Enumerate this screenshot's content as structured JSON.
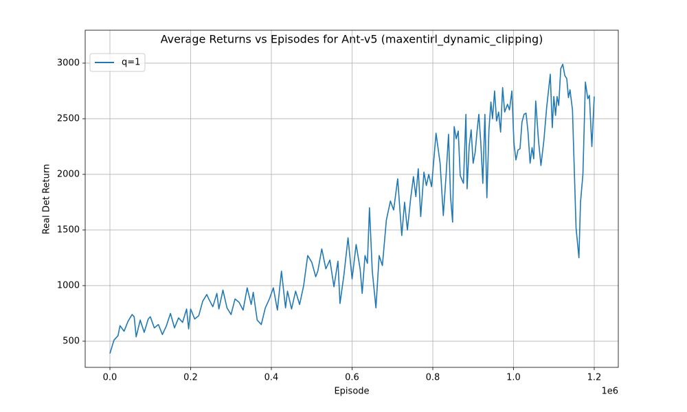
{
  "chart_data": {
    "type": "line",
    "title": "Average Returns vs Episodes for Ant-v5 (maxentirl_dynamic_clipping)",
    "xlabel": "Episode",
    "ylabel": "Real Det Return",
    "x_offset_text": "1e6",
    "x": [
      0,
      10000,
      20000,
      25000,
      35000,
      45000,
      55000,
      60000,
      65000,
      75000,
      85000,
      95000,
      100000,
      110000,
      120000,
      130000,
      140000,
      150000,
      160000,
      170000,
      180000,
      190000,
      195000,
      200000,
      210000,
      220000,
      230000,
      240000,
      245000,
      255000,
      265000,
      270000,
      280000,
      290000,
      300000,
      310000,
      320000,
      330000,
      340000,
      350000,
      355000,
      365000,
      375000,
      385000,
      395000,
      405000,
      415000,
      425000,
      435000,
      440000,
      450000,
      460000,
      470000,
      480000,
      490000,
      500000,
      510000,
      515000,
      525000,
      535000,
      545000,
      555000,
      565000,
      570000,
      580000,
      590000,
      600000,
      610000,
      620000,
      625000,
      632000,
      638000,
      643000,
      650000,
      659000,
      667000,
      675000,
      685000,
      695000,
      703000,
      713000,
      723000,
      730000,
      737000,
      745000,
      752000,
      758000,
      764000,
      770000,
      778000,
      784000,
      790000,
      797000,
      808000,
      818000,
      826000,
      833000,
      839000,
      844000,
      849000,
      853000,
      858000,
      863000,
      868000,
      876000,
      882000,
      885000,
      890000,
      895000,
      900000,
      905000,
      910000,
      914000,
      919000,
      924000,
      929000,
      934000,
      939000,
      944000,
      948000,
      953000,
      958000,
      963000,
      968000,
      973000,
      978000,
      985000,
      990000,
      996000,
      1001000,
      1006000,
      1011000,
      1016000,
      1021000,
      1026000,
      1031000,
      1036000,
      1041000,
      1046000,
      1050000,
      1055000,
      1062000,
      1068000,
      1075000,
      1082000,
      1091000,
      1096000,
      1100000,
      1104000,
      1108000,
      1112000,
      1117000,
      1122000,
      1127000,
      1132000,
      1136000,
      1140000,
      1146000,
      1155000,
      1162000,
      1166000,
      1172000,
      1178000,
      1184000,
      1188000,
      1194000,
      1200000
    ],
    "series": [
      {
        "name": "q=1",
        "color": "#1f77b4",
        "values": [
          390,
          510,
          550,
          640,
          590,
          680,
          740,
          720,
          540,
          690,
          580,
          700,
          720,
          620,
          650,
          560,
          640,
          750,
          620,
          710,
          670,
          790,
          610,
          790,
          700,
          730,
          860,
          920,
          880,
          810,
          930,
          790,
          960,
          800,
          740,
          880,
          850,
          780,
          980,
          830,
          940,
          690,
          650,
          800,
          880,
          980,
          780,
          1130,
          800,
          950,
          790,
          950,
          830,
          1000,
          1270,
          1210,
          1080,
          1130,
          1330,
          1150,
          1230,
          990,
          1220,
          840,
          1100,
          1430,
          1060,
          1370,
          1150,
          930,
          1270,
          1200,
          1700,
          1130,
          800,
          1270,
          1180,
          1590,
          1760,
          1680,
          1960,
          1450,
          1750,
          1500,
          1780,
          1980,
          1800,
          2050,
          1620,
          2020,
          1900,
          2000,
          1890,
          2370,
          2100,
          1630,
          2000,
          2360,
          1800,
          1570,
          2430,
          2320,
          2390,
          1990,
          1920,
          2540,
          1870,
          2250,
          2400,
          2100,
          2200,
          2400,
          2540,
          2280,
          1920,
          2540,
          1790,
          2400,
          2650,
          2500,
          2750,
          2480,
          2560,
          2380,
          2780,
          2560,
          2630,
          2580,
          2750,
          2280,
          2130,
          2220,
          2230,
          2470,
          2540,
          2550,
          2380,
          2100,
          2240,
          2140,
          2660,
          2300,
          2080,
          2300,
          2600,
          2900,
          2420,
          2700,
          2530,
          2700,
          2620,
          2950,
          2990,
          2890,
          2860,
          2690,
          2760,
          2580,
          1520,
          1250,
          1750,
          2000,
          2830,
          2680,
          2710,
          2250,
          2700
        ]
      }
    ],
    "xlim": [
      -61300,
      1259600
    ],
    "xticks": [
      {
        "value": 0,
        "label": "0.0"
      },
      {
        "value": 200000,
        "label": "0.2"
      },
      {
        "value": 400000,
        "label": "0.4"
      },
      {
        "value": 600000,
        "label": "0.6"
      },
      {
        "value": 800000,
        "label": "0.8"
      },
      {
        "value": 1000000,
        "label": "1.0"
      },
      {
        "value": 1200000,
        "label": "1.2"
      }
    ],
    "ylim": [
      265,
      3296
    ],
    "yticks": [
      500,
      1000,
      1500,
      2000,
      2500,
      3000
    ],
    "grid": true,
    "legend": "upper left"
  }
}
